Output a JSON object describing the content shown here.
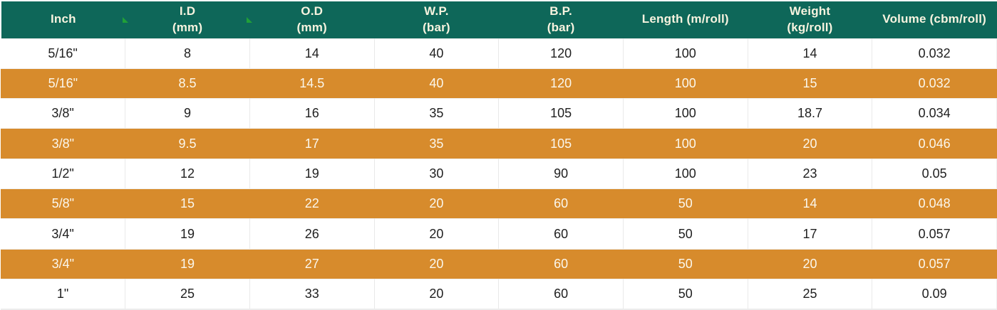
{
  "table": {
    "header_lines": [
      "Inch",
      "I.D\n(mm)",
      "O.D\n(mm)",
      "W.P.\n(bar)",
      "B.P.\n(bar)",
      "Length (m/roll)",
      "Weight\n(kg/roll)",
      "Volume (cbm/roll)"
    ]
  },
  "chart_data": {
    "type": "table",
    "title": "",
    "columns": [
      "Inch",
      "I.D (mm)",
      "O.D (mm)",
      "W.P. (bar)",
      "B.P. (bar)",
      "Length (m/roll)",
      "Weight (kg/roll)",
      "Volume (cbm/roll)"
    ],
    "rows": [
      [
        "5/16\"",
        "8",
        "14",
        "40",
        "120",
        "100",
        "14",
        "0.032"
      ],
      [
        "5/16\"",
        "8.5",
        "14.5",
        "40",
        "120",
        "100",
        "15",
        "0.032"
      ],
      [
        "3/8\"",
        "9",
        "16",
        "35",
        "105",
        "100",
        "18.7",
        "0.034"
      ],
      [
        "3/8\"",
        "9.5",
        "17",
        "35",
        "105",
        "100",
        "20",
        "0.046"
      ],
      [
        "1/2\"",
        "12",
        "19",
        "30",
        "90",
        "100",
        "23",
        "0.05"
      ],
      [
        "5/8\"",
        "15",
        "22",
        "20",
        "60",
        "50",
        "14",
        "0.048"
      ],
      [
        "3/4\"",
        "19",
        "26",
        "20",
        "60",
        "50",
        "17",
        "0.057"
      ],
      [
        "3/4\"",
        "19",
        "27",
        "20",
        "60",
        "50",
        "20",
        "0.057"
      ],
      [
        "1\"",
        "25",
        "33",
        "20",
        "60",
        "50",
        "25",
        "0.09"
      ]
    ],
    "layout": {
      "stripe_pattern": "alternating white/orange starting with white",
      "grid": "light vertical dividers on white rows only"
    }
  },
  "colors": {
    "header_bg": "#0e6759",
    "header_text": "#f7f3df",
    "stripe_bg": "#d78b2c",
    "stripe_text": "#fbf7ec",
    "body_text": "#1f1f1f",
    "grid_line": "#e9e9e9",
    "marker_green": "#21a038"
  },
  "icons": {
    "header_marker": "green-triangle-marker"
  }
}
